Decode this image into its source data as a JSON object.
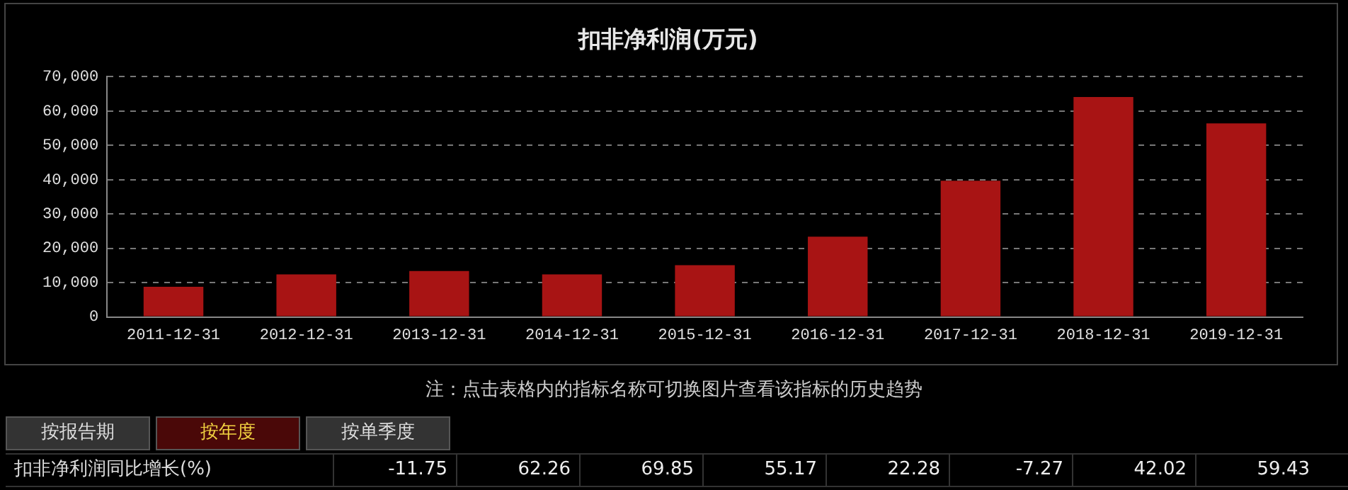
{
  "chart_data": {
    "type": "bar",
    "title": "扣非净利润(万元)",
    "categories": [
      "2011-12-31",
      "2012-12-31",
      "2013-12-31",
      "2014-12-31",
      "2015-12-31",
      "2016-12-31",
      "2017-12-31",
      "2018-12-31",
      "2019-12-31"
    ],
    "values": [
      8800,
      12400,
      13400,
      12400,
      15100,
      23400,
      39700,
      64100,
      56400
    ],
    "color": "#a81414",
    "ylim": [
      0,
      70000
    ],
    "yticks": [
      {
        "value": 0,
        "label": "0"
      },
      {
        "value": 10000,
        "label": "10,000"
      },
      {
        "value": 20000,
        "label": "20,000"
      },
      {
        "value": 30000,
        "label": "30,000"
      },
      {
        "value": 40000,
        "label": "40,000"
      },
      {
        "value": 50000,
        "label": "50,000"
      },
      {
        "value": 60000,
        "label": "60,000"
      },
      {
        "value": 70000,
        "label": "70,000"
      }
    ],
    "grid": "y",
    "annotations": [
      "注：点击表格内的指标名称可切换图片查看该指标的历史趋势",
      "按报告期",
      "按年度",
      "按单季度",
      "扣非净利润同比增长(%)",
      "-11.75",
      "62.26",
      "69.85",
      "55.17",
      "22.28",
      "-7.27",
      "42.02",
      "59.43"
    ]
  }
}
